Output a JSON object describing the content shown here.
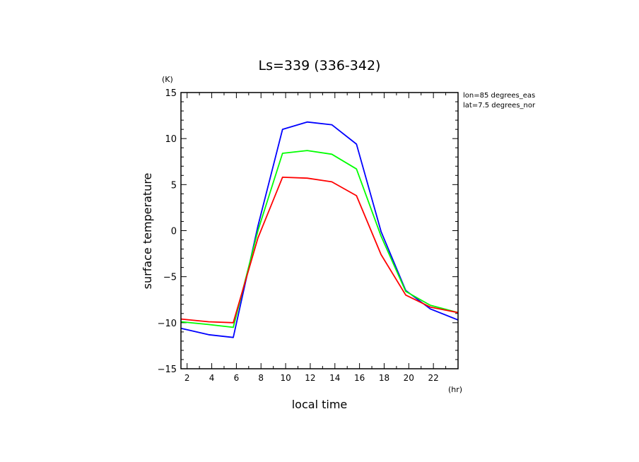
{
  "chart_data": {
    "type": "line",
    "title": "Ls=339 (336-342)",
    "xlabel": "local time",
    "xunit": "(hr)",
    "ylabel": "surface temperature",
    "yunit": "(K)",
    "annotations": [
      "lon=85 degrees_eas",
      "lat=7.5 degrees_nor"
    ],
    "xlim": [
      1.5,
      24
    ],
    "ylim": [
      -15,
      15
    ],
    "xticks": [
      2,
      4,
      6,
      8,
      10,
      12,
      14,
      16,
      18,
      20,
      22
    ],
    "yticks": [
      -15,
      -10,
      -5,
      0,
      5,
      10,
      15
    ],
    "grid": false,
    "x": [
      1.5,
      3.75,
      5.75,
      7.75,
      9.75,
      11.75,
      13.75,
      15.75,
      17.75,
      19.75,
      21.75,
      24
    ],
    "series": [
      {
        "color": "#0000ff",
        "values": [
          -10.6,
          -11.3,
          -11.6,
          0.5,
          11.0,
          11.8,
          11.5,
          9.4,
          -0.1,
          -6.5,
          -8.5,
          -9.7
        ]
      },
      {
        "color": "#00ff00",
        "values": [
          -9.9,
          -10.2,
          -10.5,
          0.0,
          8.4,
          8.7,
          8.3,
          6.7,
          -0.6,
          -6.6,
          -8.1,
          -8.9
        ]
      },
      {
        "color": "#ff0000",
        "values": [
          -9.6,
          -9.9,
          -10.0,
          -0.8,
          5.8,
          5.7,
          5.3,
          3.8,
          -2.6,
          -7.0,
          -8.3,
          -8.9
        ]
      }
    ]
  }
}
